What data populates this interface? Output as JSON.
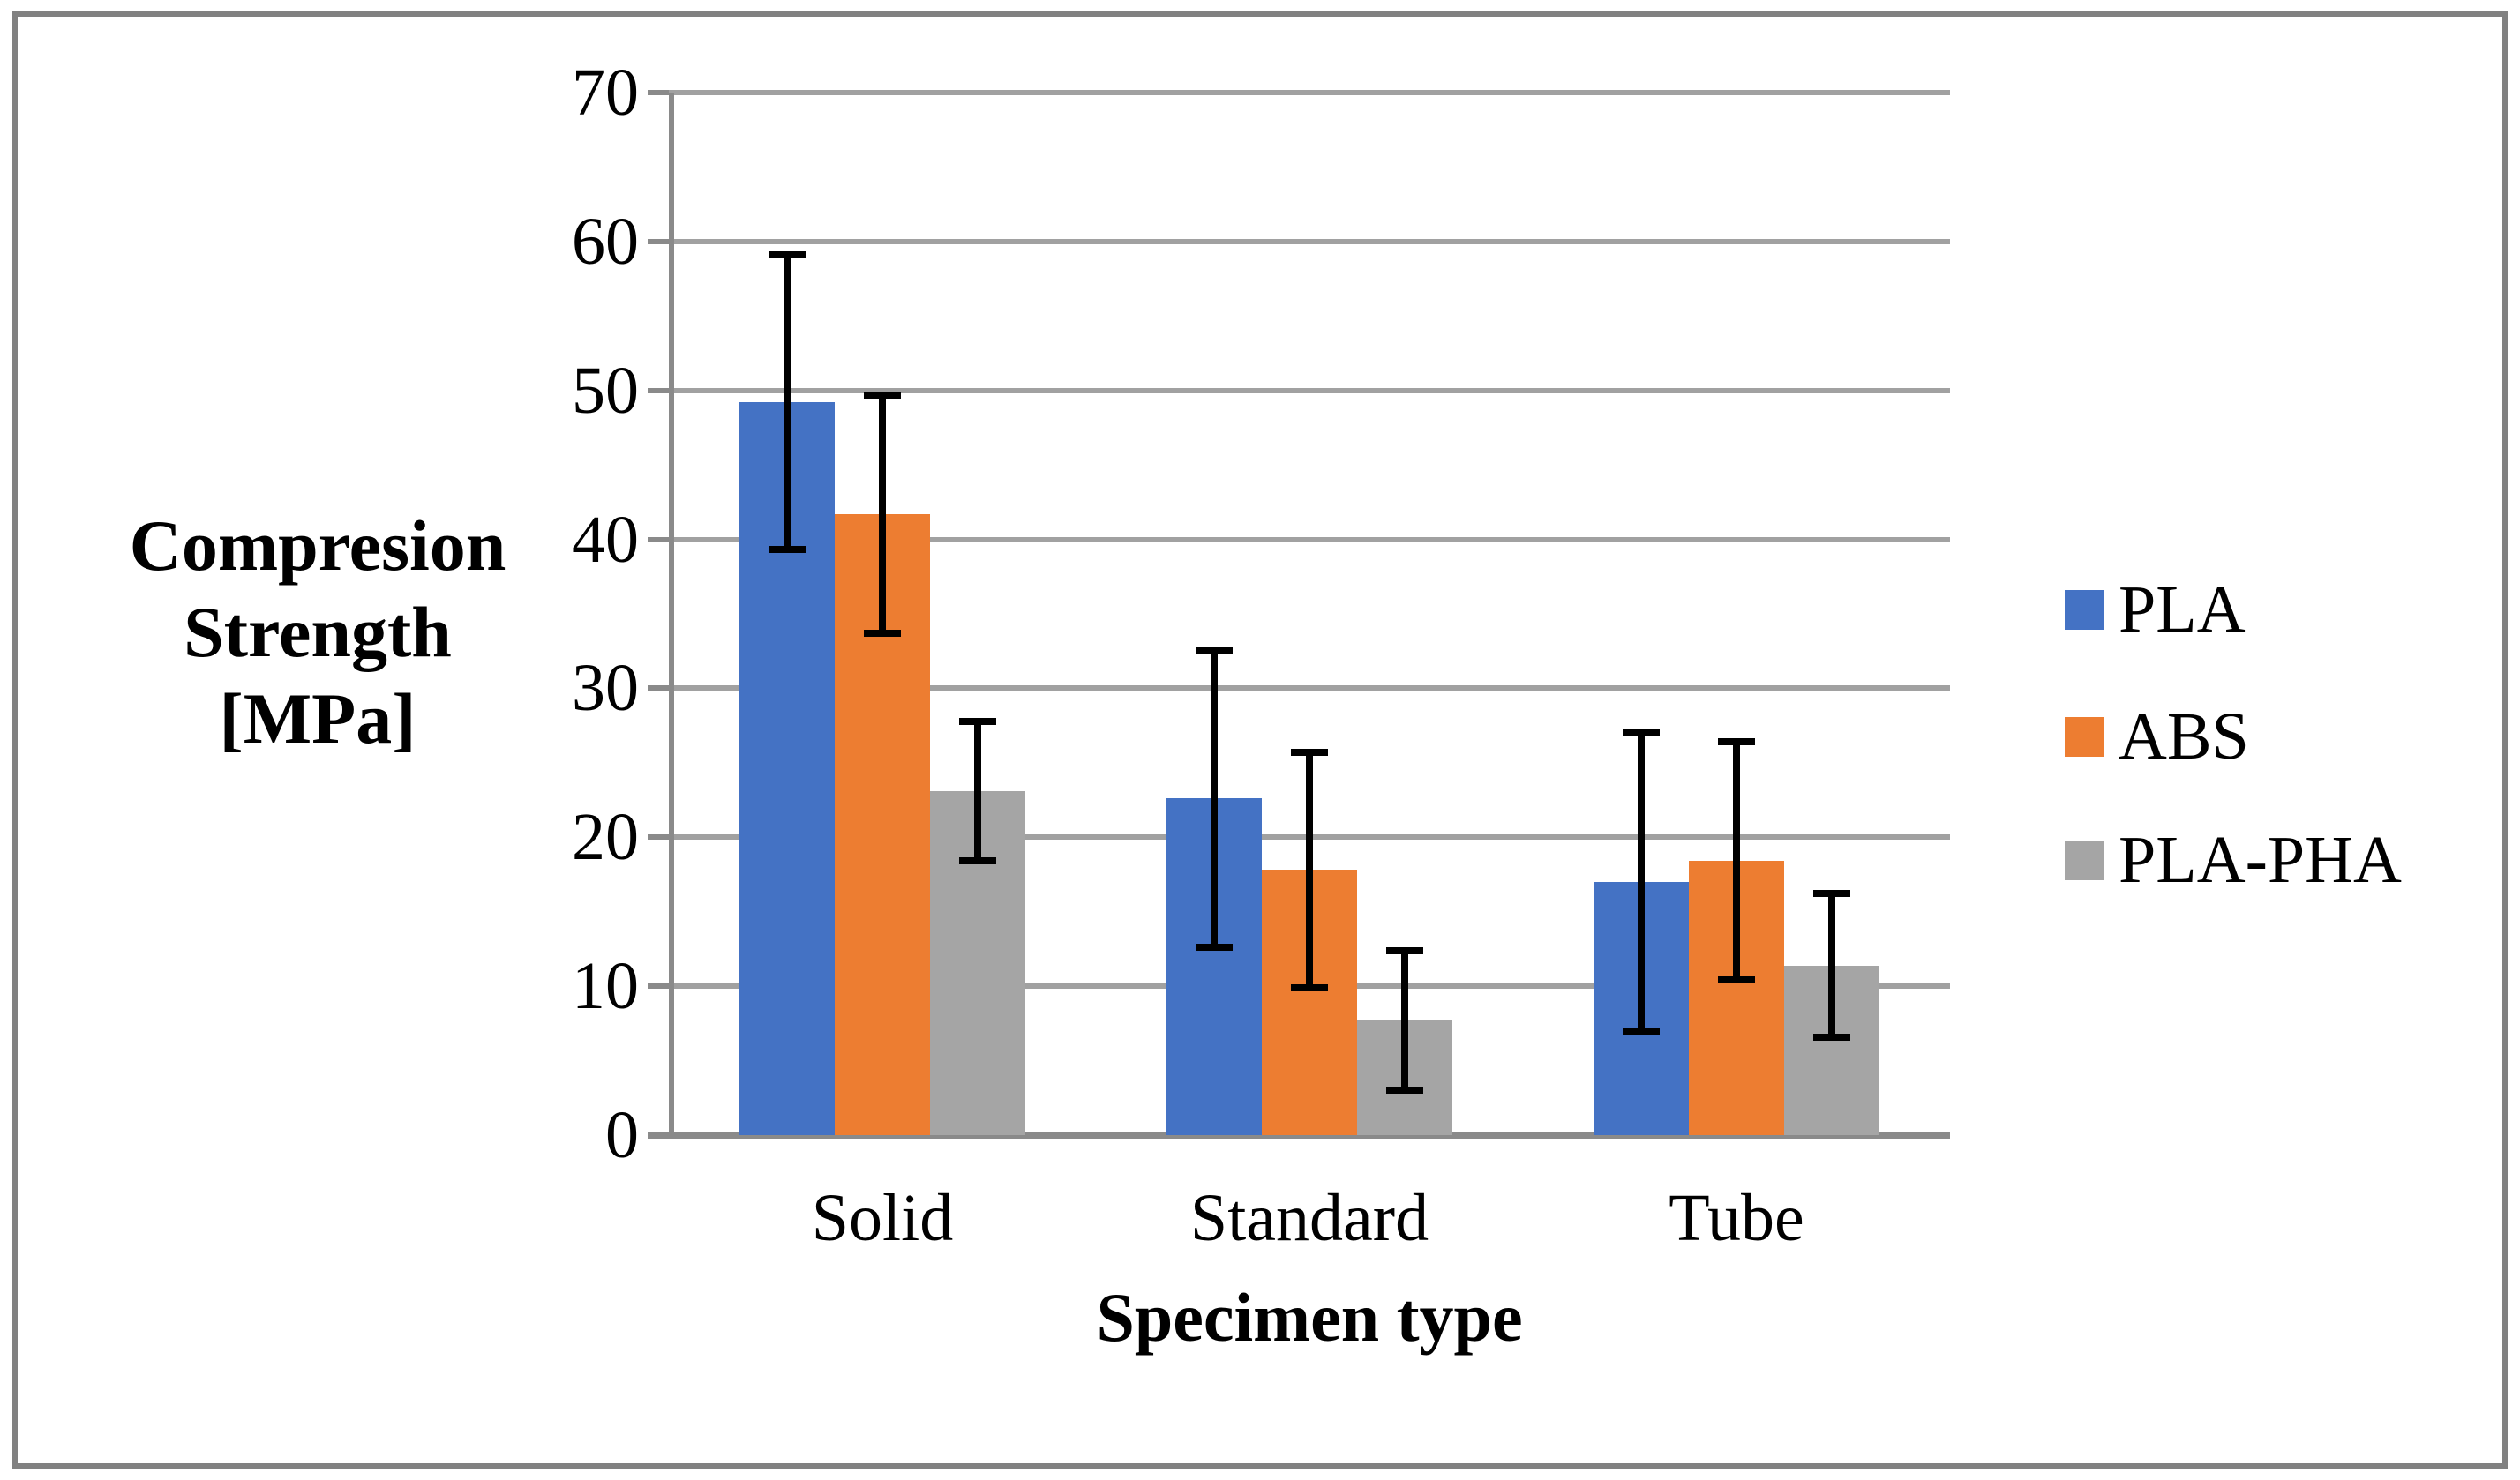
{
  "chart_data": {
    "type": "bar",
    "title": "",
    "categories": [
      "Solid",
      "Standard",
      "Tube"
    ],
    "series": [
      {
        "name": "PLA",
        "color": "#4472C4",
        "values": [
          49.2,
          22.6,
          17.0
        ],
        "error_plus": [
          9.9,
          10.0,
          10.0
        ],
        "error_minus": [
          9.9,
          10.0,
          10.0
        ]
      },
      {
        "name": "ABS",
        "color": "#ED7D31",
        "values": [
          41.7,
          17.8,
          18.4
        ],
        "error_plus": [
          8.0,
          7.9,
          8.0
        ],
        "error_minus": [
          8.0,
          7.9,
          8.0
        ]
      },
      {
        "name": "PLA-PHA",
        "color": "#A5A5A5",
        "values": [
          23.1,
          7.7,
          11.4
        ],
        "error_plus": [
          4.7,
          4.7,
          4.8
        ],
        "error_minus": [
          4.7,
          4.7,
          4.8
        ]
      }
    ],
    "xlabel": "Specimen type",
    "ylabel": "Compresion Strength [MPa]",
    "ylabel_lines": [
      "Compresion",
      "Strength",
      "[MPa]"
    ],
    "ylim": [
      0,
      70
    ],
    "yticks": [
      70,
      60,
      50,
      40,
      30,
      20,
      10,
      0
    ],
    "grid": true,
    "error_bars": true,
    "legend_position": "right"
  },
  "colors": {
    "axis": "#8a8a8a",
    "gridline": "#a1a1a1",
    "border": "#818181",
    "error_bar": "#000000",
    "background": "#ffffff"
  }
}
